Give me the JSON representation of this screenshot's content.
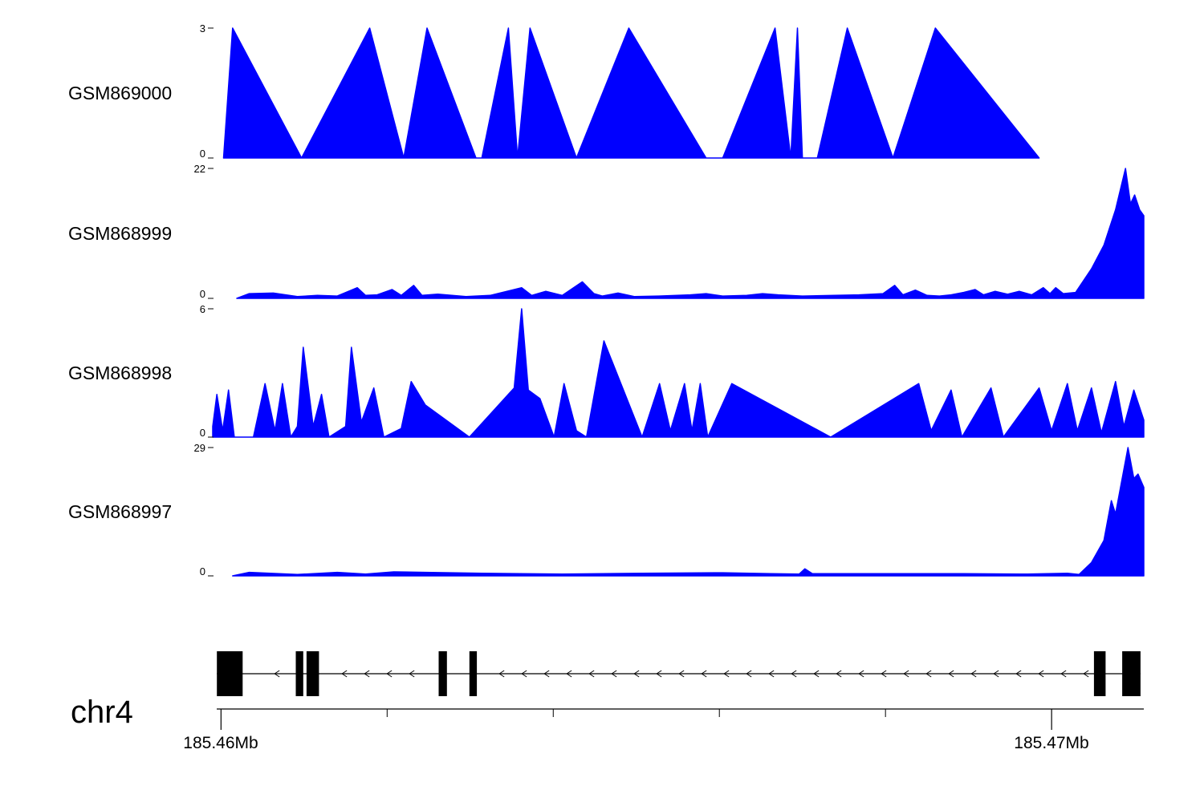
{
  "chromosome_label": "chr4",
  "accent_color": "#0000ff",
  "chart_data": {
    "type": "area",
    "title": "",
    "description": "Genome browser coverage tracks on chr4 with gene model and genomic axis",
    "x_axis": {
      "x_start_mb": 185.4599,
      "x_end_mb": 185.47111,
      "major_ticks": [
        {
          "pos_mb": 185.46,
          "label": "185.46Mb"
        },
        {
          "pos_mb": 185.47,
          "label": "185.47Mb"
        }
      ],
      "minor_ticks_mb": [
        185.462,
        185.464,
        185.466,
        185.468
      ]
    },
    "tracks": [
      {
        "name": "GSM869000",
        "ymin": 0,
        "ymax": 3,
        "points": [
          [
            185.46003,
            0
          ],
          [
            185.46014,
            3
          ],
          [
            185.46097,
            0
          ],
          [
            185.46179,
            3
          ],
          [
            185.4622,
            0
          ],
          [
            185.46248,
            3
          ],
          [
            185.46307,
            0
          ],
          [
            185.46314,
            0
          ],
          [
            185.46346,
            3
          ],
          [
            185.46357,
            0
          ],
          [
            185.46372,
            3
          ],
          [
            185.46428,
            0
          ],
          [
            185.46491,
            3
          ],
          [
            185.46584,
            0
          ],
          [
            185.46604,
            0
          ],
          [
            185.46667,
            3
          ],
          [
            185.46686,
            0
          ],
          [
            185.46694,
            3
          ],
          [
            185.467,
            0
          ],
          [
            185.46718,
            0
          ],
          [
            185.46754,
            3
          ],
          [
            185.46809,
            0
          ],
          [
            185.4686,
            3
          ],
          [
            185.46985,
            0
          ]
        ]
      },
      {
        "name": "GSM868999",
        "ymin": 0,
        "ymax": 22,
        "points": [
          [
            185.46019,
            0
          ],
          [
            185.46034,
            0.8
          ],
          [
            185.46063,
            0.9
          ],
          [
            185.46092,
            0.3
          ],
          [
            185.46116,
            0.5
          ],
          [
            185.4614,
            0.4
          ],
          [
            185.46164,
            1.8
          ],
          [
            185.46174,
            0.5
          ],
          [
            185.46188,
            0.6
          ],
          [
            185.46206,
            1.5
          ],
          [
            185.46217,
            0.5
          ],
          [
            185.46232,
            2.2
          ],
          [
            185.46242,
            0.5
          ],
          [
            185.46261,
            0.7
          ],
          [
            185.46295,
            0.3
          ],
          [
            185.46324,
            0.5
          ],
          [
            185.46362,
            1.8
          ],
          [
            185.46374,
            0.5
          ],
          [
            185.46391,
            1.2
          ],
          [
            185.46411,
            0.5
          ],
          [
            185.46435,
            2.8
          ],
          [
            185.46449,
            0.8
          ],
          [
            185.46459,
            0.4
          ],
          [
            185.46478,
            0.9
          ],
          [
            185.46498,
            0.3
          ],
          [
            185.46527,
            0.4
          ],
          [
            185.46565,
            0.6
          ],
          [
            185.46584,
            0.8
          ],
          [
            185.46604,
            0.4
          ],
          [
            185.46633,
            0.5
          ],
          [
            185.46652,
            0.8
          ],
          [
            185.46671,
            0.6
          ],
          [
            185.467,
            0.4
          ],
          [
            185.46739,
            0.5
          ],
          [
            185.46768,
            0.6
          ],
          [
            185.46797,
            0.8
          ],
          [
            185.46811,
            2.2
          ],
          [
            185.46821,
            0.6
          ],
          [
            185.46836,
            1.4
          ],
          [
            185.4685,
            0.5
          ],
          [
            185.46865,
            0.4
          ],
          [
            185.46879,
            0.6
          ],
          [
            185.46894,
            1.0
          ],
          [
            185.46908,
            1.5
          ],
          [
            185.46918,
            0.6
          ],
          [
            185.46932,
            1.2
          ],
          [
            185.46947,
            0.7
          ],
          [
            185.46961,
            1.2
          ],
          [
            185.46976,
            0.6
          ],
          [
            185.4699,
            1.8
          ],
          [
            185.46998,
            0.8
          ],
          [
            185.47005,
            1.8
          ],
          [
            185.47014,
            0.8
          ],
          [
            185.47029,
            1.0
          ],
          [
            185.47048,
            5
          ],
          [
            185.47063,
            9
          ],
          [
            185.47077,
            15
          ],
          [
            185.47089,
            22
          ],
          [
            185.47095,
            16
          ],
          [
            185.471,
            17.5
          ],
          [
            185.47106,
            15
          ],
          [
            185.47111,
            14
          ]
        ]
      },
      {
        "name": "GSM868998",
        "ymin": 0,
        "ymax": 6,
        "points": [
          [
            185.4599,
            0.5
          ],
          [
            185.45995,
            2
          ],
          [
            185.46002,
            0.3
          ],
          [
            185.46009,
            2.2
          ],
          [
            185.46016,
            0
          ],
          [
            185.46039,
            0
          ],
          [
            185.46053,
            2.5
          ],
          [
            185.46065,
            0.3
          ],
          [
            185.46074,
            2.5
          ],
          [
            185.46084,
            0
          ],
          [
            185.46092,
            0.5
          ],
          [
            185.46099,
            4.2
          ],
          [
            185.46111,
            0.5
          ],
          [
            185.46121,
            2
          ],
          [
            185.4613,
            0
          ],
          [
            185.4615,
            0.5
          ],
          [
            185.46157,
            4.2
          ],
          [
            185.46169,
            0.7
          ],
          [
            185.46184,
            2.3
          ],
          [
            185.46196,
            0
          ],
          [
            185.46217,
            0.4
          ],
          [
            185.46229,
            2.6
          ],
          [
            185.46246,
            1.5
          ],
          [
            185.46299,
            0
          ],
          [
            185.46353,
            2.3
          ],
          [
            185.46362,
            6
          ],
          [
            185.4637,
            2.2
          ],
          [
            185.46384,
            1.8
          ],
          [
            185.46401,
            0
          ],
          [
            185.46413,
            2.5
          ],
          [
            185.46428,
            0.3
          ],
          [
            185.4644,
            0
          ],
          [
            185.46461,
            4.5
          ],
          [
            185.46507,
            0
          ],
          [
            185.46528,
            2.5
          ],
          [
            185.46541,
            0.3
          ],
          [
            185.46558,
            2.5
          ],
          [
            185.46567,
            0.3
          ],
          [
            185.46577,
            2.5
          ],
          [
            185.46586,
            0
          ],
          [
            185.46615,
            2.5
          ],
          [
            185.46734,
            0
          ],
          [
            185.4684,
            2.5
          ],
          [
            185.46855,
            0.3
          ],
          [
            185.46879,
            2.2
          ],
          [
            185.46892,
            0
          ],
          [
            185.46927,
            2.3
          ],
          [
            185.46942,
            0
          ],
          [
            185.46985,
            2.3
          ],
          [
            185.47,
            0.3
          ],
          [
            185.47019,
            2.5
          ],
          [
            185.47031,
            0.3
          ],
          [
            185.47048,
            2.3
          ],
          [
            185.4706,
            0.2
          ],
          [
            185.47077,
            2.6
          ],
          [
            185.47087,
            0.5
          ],
          [
            185.47099,
            2.2
          ],
          [
            185.47111,
            0.8
          ]
        ]
      },
      {
        "name": "GSM868997",
        "ymin": 0,
        "ymax": 29,
        "points": [
          [
            185.46014,
            0
          ],
          [
            185.46034,
            0.8
          ],
          [
            185.46092,
            0.3
          ],
          [
            185.4614,
            0.8
          ],
          [
            185.46174,
            0.4
          ],
          [
            185.46208,
            0.9
          ],
          [
            185.46246,
            0.8
          ],
          [
            185.46314,
            0.6
          ],
          [
            185.46411,
            0.4
          ],
          [
            185.46507,
            0.6
          ],
          [
            185.46604,
            0.7
          ],
          [
            185.46662,
            0.5
          ],
          [
            185.46696,
            0.4
          ],
          [
            185.46703,
            1.6
          ],
          [
            185.46712,
            0.5
          ],
          [
            185.46797,
            0.5
          ],
          [
            185.46894,
            0.5
          ],
          [
            185.46971,
            0.4
          ],
          [
            185.47019,
            0.6
          ],
          [
            185.47033,
            0.3
          ],
          [
            185.47048,
            3
          ],
          [
            185.47063,
            8
          ],
          [
            185.47072,
            17
          ],
          [
            185.47077,
            14
          ],
          [
            185.47092,
            29
          ],
          [
            185.47099,
            22
          ],
          [
            185.47104,
            23
          ],
          [
            185.47111,
            20
          ]
        ]
      }
    ],
    "gene_track": {
      "chromosome": "chr4",
      "strand": "-",
      "intron_line_mb": [
        185.45995,
        185.47107
      ],
      "exons_mb": [
        [
          185.45995,
          185.46026
        ],
        [
          185.4609,
          185.46099
        ],
        [
          185.46103,
          185.46118
        ],
        [
          185.46262,
          185.46272
        ],
        [
          185.46299,
          185.46308
        ],
        [
          185.47051,
          185.47065
        ],
        [
          185.47085,
          185.47107
        ]
      ]
    }
  }
}
